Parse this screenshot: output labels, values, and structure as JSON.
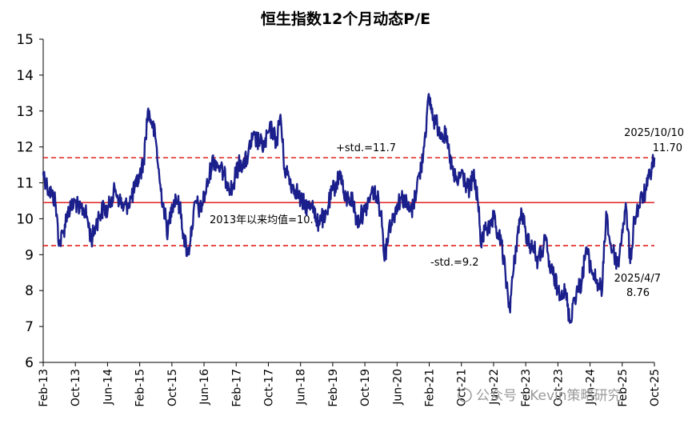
{
  "chart_data": {
    "type": "line",
    "title": "恒生指数12个月动态P/E",
    "xlabel": "",
    "ylabel": "",
    "ylim": [
      6,
      15
    ],
    "yticks": [
      6,
      7,
      8,
      9,
      10,
      11,
      12,
      13,
      14,
      15
    ],
    "xlim": [
      "2013-02",
      "2025-10"
    ],
    "xticks": [
      "Feb-13",
      "Oct-13",
      "Jun-14",
      "Feb-15",
      "Oct-15",
      "Jun-16",
      "Feb-17",
      "Oct-17",
      "Jun-18",
      "Feb-19",
      "Oct-19",
      "Jun-20",
      "Feb-21",
      "Oct-21",
      "Jun-22",
      "Feb-23",
      "Oct-23",
      "Jun-24",
      "Feb-25",
      "Oct-25"
    ],
    "grid": false,
    "series": [
      {
        "color": "#1a1f8c",
        "points": [
          [
            "2013-02",
            11.3
          ],
          [
            "2013-03",
            10.9
          ],
          [
            "2013-04",
            10.7
          ],
          [
            "2013-05",
            10.5
          ],
          [
            "2013-06",
            9.3
          ],
          [
            "2013-07",
            9.6
          ],
          [
            "2013-08",
            10.2
          ],
          [
            "2013-09",
            10.3
          ],
          [
            "2013-10",
            10.5
          ],
          [
            "2013-11",
            10.2
          ],
          [
            "2013-12",
            10.3
          ],
          [
            "2014-01",
            10.0
          ],
          [
            "2014-02",
            9.4
          ],
          [
            "2014-03",
            9.8
          ],
          [
            "2014-04",
            10.1
          ],
          [
            "2014-05",
            10.3
          ],
          [
            "2014-06",
            10.2
          ],
          [
            "2014-07",
            10.6
          ],
          [
            "2014-08",
            10.8
          ],
          [
            "2014-09",
            10.5
          ],
          [
            "2014-10",
            10.3
          ],
          [
            "2014-11",
            10.4
          ],
          [
            "2014-12",
            10.6
          ],
          [
            "2015-01",
            10.9
          ],
          [
            "2015-02",
            11.2
          ],
          [
            "2015-03",
            11.6
          ],
          [
            "2015-04",
            13.0
          ],
          [
            "2015-05",
            12.7
          ],
          [
            "2015-06",
            12.2
          ],
          [
            "2015-07",
            11.0
          ],
          [
            "2015-08",
            10.3
          ],
          [
            "2015-09",
            9.6
          ],
          [
            "2015-10",
            10.4
          ],
          [
            "2015-11",
            10.6
          ],
          [
            "2015-12",
            10.3
          ],
          [
            "2016-01",
            9.5
          ],
          [
            "2016-02",
            9.0
          ],
          [
            "2016-03",
            9.8
          ],
          [
            "2016-04",
            10.5
          ],
          [
            "2016-05",
            10.2
          ],
          [
            "2016-06",
            10.6
          ],
          [
            "2016-07",
            11.0
          ],
          [
            "2016-08",
            11.6
          ],
          [
            "2016-09",
            11.6
          ],
          [
            "2016-10",
            11.4
          ],
          [
            "2016-11",
            11.2
          ],
          [
            "2016-12",
            11.0
          ],
          [
            "2017-01",
            10.8
          ],
          [
            "2017-02",
            11.3
          ],
          [
            "2017-03",
            11.6
          ],
          [
            "2017-04",
            11.5
          ],
          [
            "2017-05",
            11.8
          ],
          [
            "2017-06",
            12.2
          ],
          [
            "2017-07",
            12.2
          ],
          [
            "2017-08",
            12.1
          ],
          [
            "2017-09",
            12.0
          ],
          [
            "2017-10",
            12.4
          ],
          [
            "2017-11",
            12.5
          ],
          [
            "2017-12",
            12.1
          ],
          [
            "2018-01",
            12.9
          ],
          [
            "2018-02",
            11.4
          ],
          [
            "2018-03",
            11.2
          ],
          [
            "2018-04",
            10.9
          ],
          [
            "2018-05",
            10.8
          ],
          [
            "2018-06",
            10.5
          ],
          [
            "2018-07",
            10.4
          ],
          [
            "2018-08",
            10.3
          ],
          [
            "2018-09",
            10.5
          ],
          [
            "2018-10",
            9.8
          ],
          [
            "2018-11",
            10.1
          ],
          [
            "2018-12",
            9.9
          ],
          [
            "2019-01",
            10.4
          ],
          [
            "2019-02",
            10.8
          ],
          [
            "2019-03",
            11.0
          ],
          [
            "2019-04",
            11.3
          ],
          [
            "2019-05",
            10.5
          ],
          [
            "2019-06",
            10.6
          ],
          [
            "2019-07",
            10.5
          ],
          [
            "2019-08",
            9.9
          ],
          [
            "2019-09",
            10.1
          ],
          [
            "2019-10",
            10.2
          ],
          [
            "2019-11",
            10.5
          ],
          [
            "2019-12",
            10.8
          ],
          [
            "2020-01",
            10.6
          ],
          [
            "2020-02",
            10.2
          ],
          [
            "2020-03",
            8.9
          ],
          [
            "2020-04",
            9.8
          ],
          [
            "2020-05",
            10.0
          ],
          [
            "2020-06",
            10.4
          ],
          [
            "2020-07",
            10.6
          ],
          [
            "2020-08",
            10.5
          ],
          [
            "2020-09",
            10.2
          ],
          [
            "2020-10",
            10.3
          ],
          [
            "2020-11",
            11.0
          ],
          [
            "2020-12",
            11.4
          ],
          [
            "2021-01",
            12.4
          ],
          [
            "2021-02",
            13.4
          ],
          [
            "2021-03",
            12.8
          ],
          [
            "2021-04",
            12.6
          ],
          [
            "2021-05",
            12.4
          ],
          [
            "2021-06",
            12.3
          ],
          [
            "2021-07",
            11.8
          ],
          [
            "2021-08",
            11.2
          ],
          [
            "2021-09",
            11.0
          ],
          [
            "2021-10",
            11.3
          ],
          [
            "2021-11",
            11.0
          ],
          [
            "2021-12",
            10.8
          ],
          [
            "2022-01",
            11.2
          ],
          [
            "2022-02",
            10.6
          ],
          [
            "2022-03",
            9.2
          ],
          [
            "2022-04",
            9.9
          ],
          [
            "2022-05",
            9.6
          ],
          [
            "2022-06",
            10.0
          ],
          [
            "2022-07",
            9.6
          ],
          [
            "2022-08",
            9.3
          ],
          [
            "2022-09",
            8.4
          ],
          [
            "2022-10",
            7.5
          ],
          [
            "2022-11",
            8.6
          ],
          [
            "2022-12",
            9.6
          ],
          [
            "2023-01",
            10.2
          ],
          [
            "2023-02",
            9.6
          ],
          [
            "2023-03",
            9.3
          ],
          [
            "2023-04",
            9.2
          ],
          [
            "2023-05",
            8.8
          ],
          [
            "2023-06",
            9.1
          ],
          [
            "2023-07",
            9.4
          ],
          [
            "2023-08",
            8.6
          ],
          [
            "2023-09",
            8.4
          ],
          [
            "2023-10",
            8.0
          ],
          [
            "2023-11",
            8.0
          ],
          [
            "2023-12",
            7.9
          ],
          [
            "2024-01",
            7.1
          ],
          [
            "2024-02",
            7.8
          ],
          [
            "2024-03",
            8.0
          ],
          [
            "2024-04",
            8.3
          ],
          [
            "2024-05",
            9.2
          ],
          [
            "2024-06",
            8.7
          ],
          [
            "2024-07",
            8.4
          ],
          [
            "2024-08",
            8.2
          ],
          [
            "2024-09",
            8.0
          ],
          [
            "2024-10",
            10.2
          ],
          [
            "2024-11",
            9.3
          ],
          [
            "2024-12",
            9.0
          ],
          [
            "2025-01",
            8.7
          ],
          [
            "2025-02",
            9.7
          ],
          [
            "2025-03",
            10.3
          ],
          [
            "2025-04",
            8.76
          ],
          [
            "2025-05",
            10.0
          ],
          [
            "2025-06",
            10.3
          ],
          [
            "2025-07",
            10.6
          ],
          [
            "2025-08",
            10.8
          ],
          [
            "2025-09",
            11.3
          ],
          [
            "2025-10",
            11.7
          ]
        ]
      }
    ],
    "reference_lines": [
      {
        "value": 11.7,
        "label": "+std.=11.7",
        "style": "dashed",
        "color": "#e02020"
      },
      {
        "value": 10.45,
        "label": "2013年以来均值=10.",
        "style": "solid",
        "color": "#e02020"
      },
      {
        "value": 9.25,
        "label": "-std.=9.2",
        "style": "dashed",
        "color": "#e02020"
      }
    ],
    "annotations": [
      {
        "date": "2025/10/10",
        "value": "11.70",
        "x": "2025-10",
        "y": 11.7
      },
      {
        "date": "2025/4/7",
        "value": "8.76",
        "x": "2025-04",
        "y": 8.76
      }
    ]
  },
  "watermark": "公众号 · Kevin策略研究"
}
